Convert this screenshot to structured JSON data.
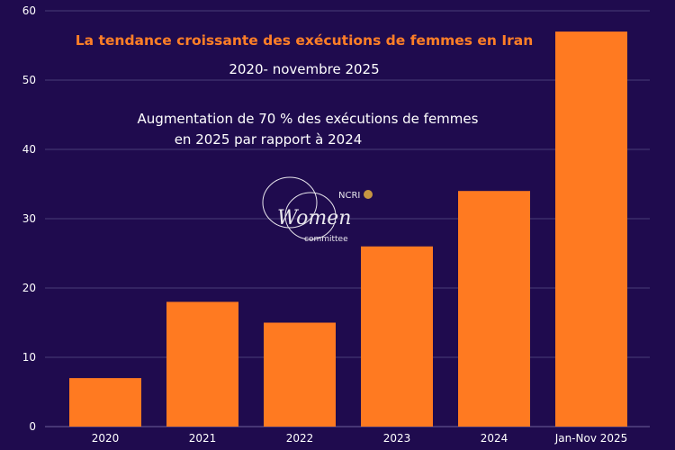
{
  "chart_data": {
    "type": "bar",
    "title": "La tendance croissante des exécutions de femmes en Iran",
    "subtitle": "2020- novembre 2025",
    "annotation_lines": [
      "Augmentation de 70 % des exécutions de femmes",
      "en 2025 par rapport à 2024"
    ],
    "categories": [
      "2020",
      "2021",
      "2022",
      "2023",
      "2024",
      "Jan-Nov 2025"
    ],
    "values": [
      7,
      18,
      15,
      26,
      34,
      57
    ],
    "xlabel": "",
    "ylabel": "",
    "ylim": [
      0,
      60
    ],
    "yticks": [
      0,
      10,
      20,
      30,
      40,
      50,
      60
    ],
    "grid": true,
    "legend": "none",
    "colors": {
      "bar": "#ff7a21",
      "background": "#1f0b4e",
      "grid": "#4a3c78",
      "title": "#ff7f27"
    }
  },
  "logo": {
    "text": "NCRI Women committee"
  }
}
